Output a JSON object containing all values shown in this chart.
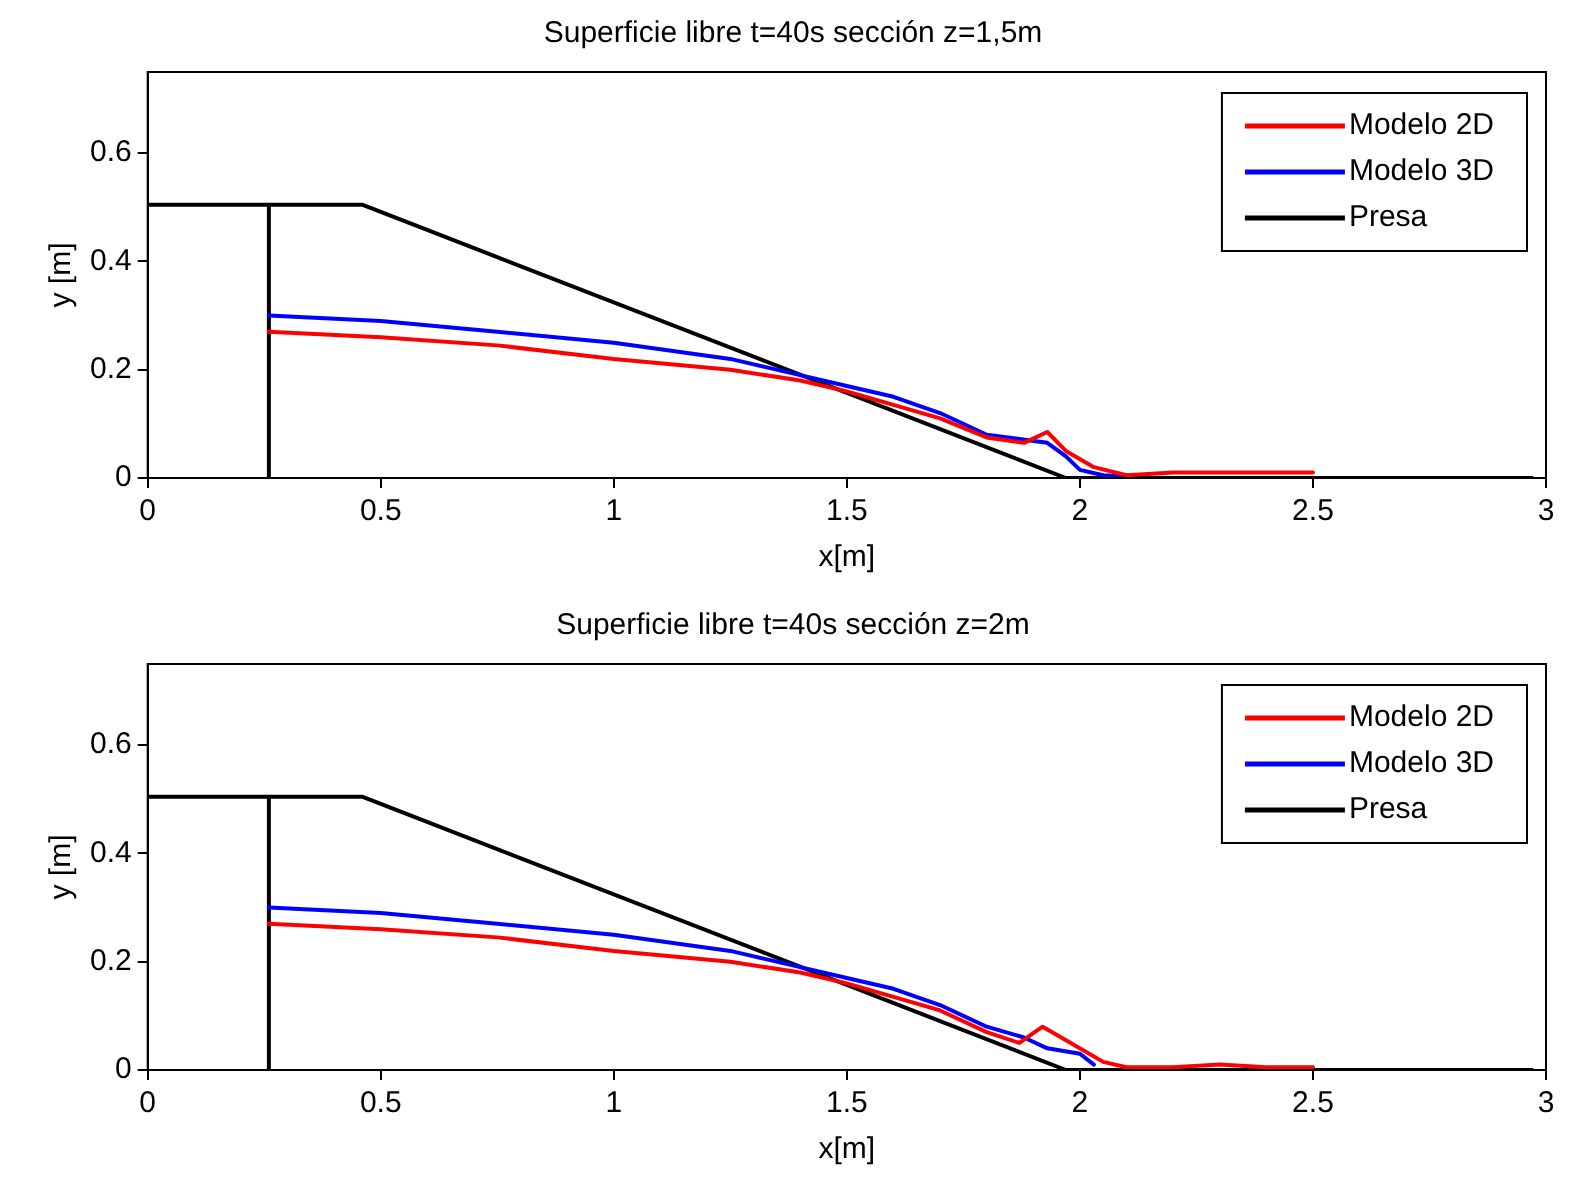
{
  "chart_data": [
    {
      "type": "line",
      "title": "Superficie libre t=40s sección z=1,5m",
      "xlabel": "x[m]",
      "ylabel": "y [m]",
      "xlim": [
        0,
        3
      ],
      "ylim": [
        0,
        0.75
      ],
      "xticks": [
        0,
        0.5,
        1,
        1.5,
        2,
        2.5,
        3
      ],
      "yticks": [
        0,
        0.2,
        0.4,
        0.6
      ],
      "legend": "top right",
      "grid": false,
      "line_style": "solid",
      "series": [
        {
          "name": "Modelo 2D",
          "color": "#ff0000",
          "x": [
            0.26,
            0.5,
            0.75,
            1.0,
            1.25,
            1.4,
            1.5,
            1.6,
            1.7,
            1.8,
            1.88,
            1.93,
            1.97,
            2.03,
            2.1,
            2.2,
            2.3,
            2.4,
            2.5
          ],
          "values": [
            0.27,
            0.26,
            0.245,
            0.22,
            0.2,
            0.18,
            0.16,
            0.135,
            0.11,
            0.075,
            0.065,
            0.085,
            0.05,
            0.02,
            0.005,
            0.01,
            0.01,
            0.01,
            0.01
          ]
        },
        {
          "name": "Modelo 3D",
          "color": "#0000ff",
          "x": [
            0.26,
            0.5,
            0.75,
            1.0,
            1.25,
            1.4,
            1.5,
            1.6,
            1.7,
            1.8,
            1.93,
            1.97,
            2.0,
            2.05,
            2.1
          ],
          "values": [
            0.3,
            0.29,
            0.27,
            0.25,
            0.22,
            0.19,
            0.17,
            0.15,
            0.12,
            0.08,
            0.065,
            0.04,
            0.015,
            0.005,
            0.003
          ]
        },
        {
          "name": "Presa",
          "color": "#000000",
          "x": [
            0,
            0.26,
            0.26,
            0.26,
            0.46,
            1.97,
            2.97
          ],
          "values": [
            0.505,
            0.505,
            0,
            0.505,
            0.505,
            0,
            0
          ]
        }
      ]
    },
    {
      "type": "line",
      "title": "Superficie libre t=40s sección z=2m",
      "xlabel": "x[m]",
      "ylabel": "y [m]",
      "xlim": [
        0,
        3
      ],
      "ylim": [
        0,
        0.75
      ],
      "xticks": [
        0,
        0.5,
        1,
        1.5,
        2,
        2.5,
        3
      ],
      "yticks": [
        0,
        0.2,
        0.4,
        0.6
      ],
      "legend": "top right",
      "grid": false,
      "line_style": "solid",
      "series": [
        {
          "name": "Modelo 2D",
          "color": "#ff0000",
          "x": [
            0.26,
            0.5,
            0.75,
            1.0,
            1.25,
            1.4,
            1.5,
            1.6,
            1.7,
            1.8,
            1.87,
            1.92,
            1.96,
            2.05,
            2.1,
            2.2,
            2.3,
            2.4,
            2.5
          ],
          "values": [
            0.27,
            0.26,
            0.245,
            0.22,
            0.2,
            0.18,
            0.16,
            0.135,
            0.11,
            0.07,
            0.05,
            0.08,
            0.06,
            0.015,
            0.005,
            0.005,
            0.01,
            0.005,
            0.005
          ]
        },
        {
          "name": "Modelo 3D",
          "color": "#0000ff",
          "x": [
            0.26,
            0.5,
            0.75,
            1.0,
            1.25,
            1.4,
            1.5,
            1.6,
            1.7,
            1.8,
            1.88,
            1.93,
            2.0,
            2.03
          ],
          "values": [
            0.3,
            0.29,
            0.27,
            0.25,
            0.22,
            0.19,
            0.17,
            0.15,
            0.12,
            0.08,
            0.06,
            0.04,
            0.03,
            0.01
          ]
        },
        {
          "name": "Presa",
          "color": "#000000",
          "x": [
            0,
            0.26,
            0.26,
            0.26,
            0.46,
            1.97,
            2.97
          ],
          "values": [
            0.505,
            0.505,
            0,
            0.505,
            0.505,
            0,
            0
          ]
        }
      ]
    }
  ]
}
